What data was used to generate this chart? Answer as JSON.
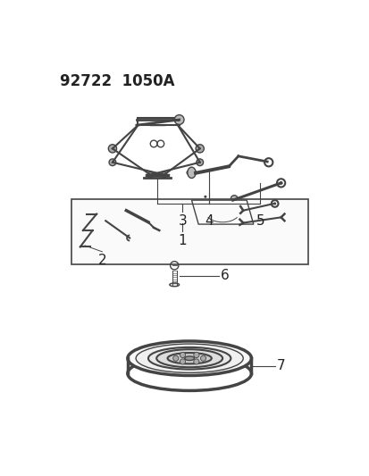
{
  "title": "92722  1050A",
  "bg_color": "#ffffff",
  "line_color": "#444444",
  "label_color": "#222222",
  "label_fontsize": 10,
  "title_fontsize": 12
}
